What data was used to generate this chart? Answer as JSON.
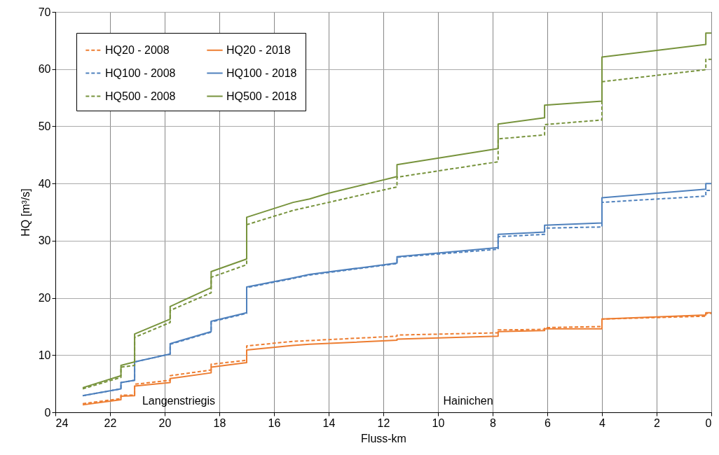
{
  "chart_data": {
    "type": "line",
    "xlabel": "Fluss-km",
    "ylabel": "HQ [m³/s]",
    "xlim": [
      24,
      0
    ],
    "xticks": [
      24,
      22,
      20,
      18,
      16,
      14,
      12,
      10,
      8,
      6,
      4,
      2,
      0
    ],
    "ylim": [
      0,
      70
    ],
    "yticks": [
      0,
      10,
      20,
      30,
      40,
      50,
      60,
      70
    ],
    "grid": true,
    "legend": "top left",
    "marker": "none",
    "annotations": [
      "Langenstriegis",
      "Hainichen"
    ],
    "series": [
      {
        "name": "HQ20 - 2008",
        "color": "#ed7d31",
        "line_style": "dashed",
        "x": [
          23,
          21.6,
          21.6,
          21.1,
          21.1,
          19.8,
          19.8,
          18.3,
          18.3,
          17,
          17,
          15.3,
          11.5,
          11.5,
          7.8,
          7.8,
          6.1,
          6.1,
          4,
          4,
          0.2,
          0.2,
          0
        ],
        "values": [
          1.5,
          2.4,
          3,
          3,
          4.9,
          5.6,
          6.4,
          7.4,
          8.4,
          9.1,
          11.6,
          12.4,
          13.3,
          13.5,
          13.9,
          14.4,
          14.5,
          14.8,
          15,
          16.3,
          16.8,
          17.3,
          17.3
        ]
      },
      {
        "name": "HQ20 - 2018",
        "color": "#ed7d31",
        "line_style": "solid",
        "x": [
          23,
          21.6,
          21.6,
          21.1,
          21.1,
          19.8,
          19.8,
          18.3,
          18.3,
          17,
          17,
          15.3,
          14.7,
          11.5,
          11.5,
          7.8,
          7.8,
          6.1,
          6.1,
          4,
          4,
          0.2,
          0.2,
          0
        ],
        "values": [
          1.3,
          2.2,
          2.8,
          2.9,
          4.6,
          5.2,
          5.9,
          6.9,
          7.9,
          8.7,
          10.9,
          11.7,
          11.9,
          12.6,
          12.8,
          13.3,
          14.1,
          14.3,
          14.6,
          14.6,
          16.3,
          17,
          17.4,
          17.4
        ]
      },
      {
        "name": "HQ100 - 2008",
        "color": "#4f81bd",
        "line_style": "dashed",
        "x": [
          23,
          21.6,
          21.6,
          21.1,
          21.1,
          19.8,
          19.8,
          18.3,
          18.3,
          17,
          17,
          15.3,
          14.7,
          11.5,
          11.5,
          7.8,
          7.8,
          6.1,
          6.1,
          4,
          4,
          0.2,
          0.2,
          0
        ],
        "values": [
          2.9,
          4.1,
          5.2,
          5.6,
          8.8,
          10.2,
          11.9,
          14,
          15.8,
          17.3,
          21.8,
          23.4,
          24,
          26,
          27.1,
          28.5,
          30.7,
          31.1,
          32.2,
          32.4,
          36.7,
          37.8,
          38.8,
          38.8
        ]
      },
      {
        "name": "HQ100 - 2018",
        "color": "#4f81bd",
        "line_style": "solid",
        "x": [
          23,
          21.6,
          21.6,
          21.1,
          21.1,
          19.8,
          19.8,
          18.3,
          18.3,
          17,
          17,
          15.3,
          14.7,
          11.5,
          11.5,
          7.8,
          7.8,
          6.1,
          6.1,
          4,
          4,
          0.2,
          0.2,
          0
        ],
        "values": [
          2.9,
          4.1,
          5.2,
          5.6,
          8.8,
          10.2,
          12,
          14.1,
          15.9,
          17.4,
          21.9,
          23.5,
          24.1,
          26.1,
          27.2,
          28.8,
          31.1,
          31.5,
          32.7,
          33.1,
          37.5,
          39,
          40,
          40
        ]
      },
      {
        "name": "HQ500 - 2008",
        "color": "#77933c",
        "line_style": "dashed",
        "x": [
          23,
          21.6,
          21.6,
          21.1,
          21.1,
          19.8,
          19.8,
          18.3,
          18.3,
          17,
          17,
          15.3,
          11.5,
          11.5,
          7.8,
          7.8,
          6.1,
          6.1,
          4,
          4,
          0.2,
          0.2,
          0
        ],
        "values": [
          4.1,
          6.1,
          7.9,
          8.2,
          13.1,
          15.7,
          17.8,
          20.9,
          23.6,
          25.8,
          32.8,
          35.3,
          39.4,
          41.1,
          43.8,
          47.8,
          48.5,
          50.3,
          51.1,
          57.8,
          59.9,
          61.7,
          61.7
        ]
      },
      {
        "name": "HQ500 - 2018",
        "color": "#77933c",
        "line_style": "solid",
        "x": [
          23,
          21.6,
          21.6,
          21.1,
          21.1,
          19.8,
          19.8,
          18.3,
          18.3,
          17,
          17,
          15.3,
          14.7,
          14,
          11.5,
          11.5,
          7.8,
          7.8,
          6.1,
          6.1,
          4,
          4,
          0.2,
          0.2,
          0
        ],
        "values": [
          4.3,
          6.4,
          8.2,
          8.8,
          13.7,
          16.3,
          18.5,
          21.8,
          24.6,
          26.8,
          34.1,
          36.7,
          37.3,
          38.3,
          41.2,
          43.3,
          46.1,
          50.4,
          51.5,
          53.7,
          54.4,
          62.1,
          64.3,
          66.3,
          66.3
        ]
      }
    ]
  }
}
